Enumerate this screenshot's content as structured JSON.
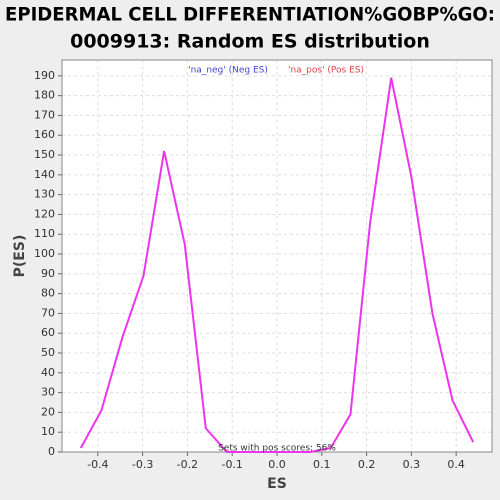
{
  "chart_data": {
    "type": "line",
    "title": [
      "EPIDERMAL CELL DIFFERENTIATION%GOBP%GO:",
      "0009913: Random ES distribution"
    ],
    "x_label": "ES",
    "y_label": "P(ES)",
    "annotation": "Sets with pos scores: 56%",
    "legend_entries": [
      {
        "label": "'na_neg' (Neg ES)",
        "color": "#4444dd"
      },
      {
        "label": "'na_pos' (Pos ES)",
        "color": "#dd4444"
      }
    ],
    "x": [
      -0.438,
      -0.392,
      -0.345,
      -0.298,
      -0.252,
      -0.206,
      -0.159,
      -0.112,
      -0.066,
      -0.019,
      0.027,
      0.074,
      0.12,
      0.164,
      0.208,
      0.255,
      0.3,
      0.347,
      0.392,
      0.438
    ],
    "series": [
      {
        "color": "#ee33ee",
        "values": [
          2,
          21,
          58,
          89,
          152,
          105,
          12,
          0,
          0,
          0,
          0,
          0,
          2,
          19,
          116,
          189,
          139,
          70,
          26,
          5
        ]
      }
    ],
    "xlim": [
      -0.48,
      0.48
    ],
    "ylim": [
      0,
      198
    ],
    "xticks": [
      -0.4,
      -0.3,
      -0.2,
      -0.1,
      {
        "value": 0,
        "label": "0.0"
      },
      0.1,
      0.2,
      0.3,
      0.4
    ],
    "yticks": [
      0,
      10,
      20,
      30,
      40,
      50,
      60,
      70,
      80,
      90,
      100,
      110,
      120,
      130,
      140,
      150,
      160,
      170,
      180,
      190
    ],
    "grid": true
  }
}
